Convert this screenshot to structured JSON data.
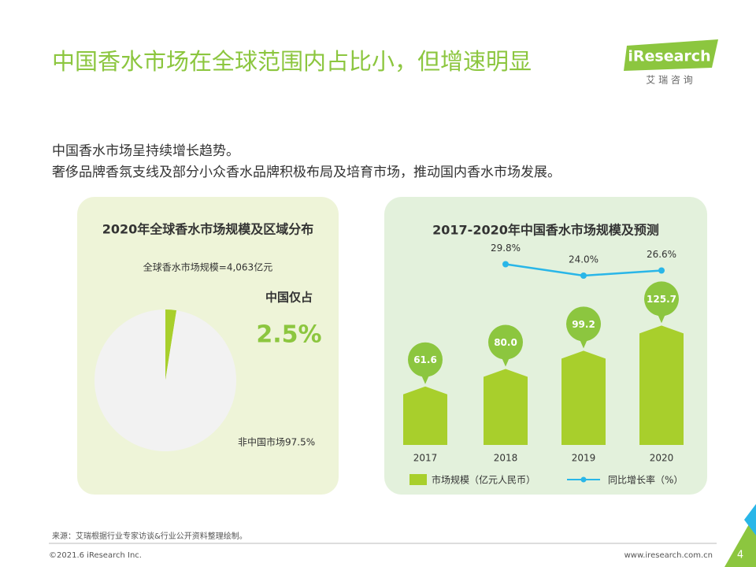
{
  "header": {
    "title": "中国香水市场在全球范围内占比小，但增速明显",
    "logo": "iResearch",
    "logo_sub": "艾 瑞 咨 询"
  },
  "body": [
    "中国香水市场呈持续增长趋势。",
    "奢侈品牌香氛支线及部分小众香水品牌积极布局及培育市场，推动国内香水市场发展。"
  ],
  "chart_data": [
    {
      "type": "pie",
      "title": "2020年全球香水市场规模及区域分布",
      "subtitle": "全球香水市场规模=4,063亿元",
      "annotation": "中国仅占",
      "values": [
        2.5,
        97.5
      ],
      "value_labels": [
        "2.5%",
        "非中国市场97.5%"
      ],
      "colors": [
        "#a8cf2c",
        "#f2f2f2"
      ]
    },
    {
      "type": "bar_line",
      "title": "2017-2020年中国香水市场规模及预测",
      "categories": [
        "2017",
        "2018",
        "2019",
        "2020"
      ],
      "series": [
        {
          "name": "市场规模（亿元人民币）",
          "color": "#a8cf2c",
          "values": [
            61.6,
            80.0,
            99.2,
            125.7
          ],
          "value_labels": [
            "61.6",
            "80.0",
            "99.2",
            "125.7"
          ]
        },
        {
          "name": "同比增长率（%）",
          "color": "#29b6e8",
          "axis": "y2",
          "values": [
            null,
            29.8,
            24.0,
            26.6
          ],
          "value_labels": [
            null,
            "29.8%",
            "24.0%",
            "26.6%"
          ]
        }
      ],
      "ylim": [
        0,
        170
      ],
      "y2lim": [
        10,
        40
      ]
    }
  ],
  "footer": {
    "source": "来源：艾瑞根据行业专家访谈&行业公开资料整理绘制。",
    "copyright": "©2021.6 iResearch Inc.",
    "url": "www.iresearch.com.cn",
    "page": "4"
  }
}
